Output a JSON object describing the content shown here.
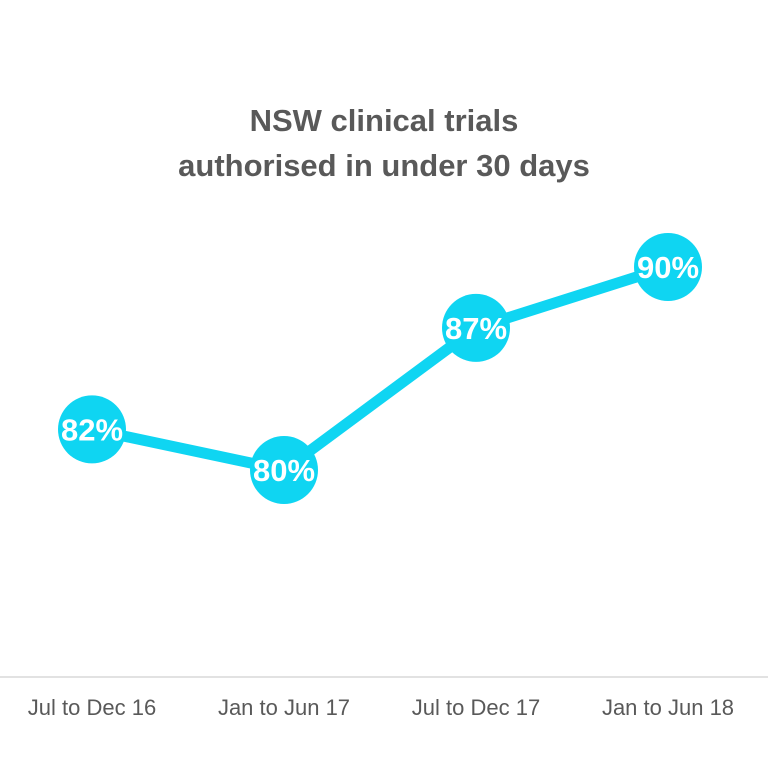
{
  "chart_data": {
    "type": "line",
    "title_lines": [
      "NSW clinical trials",
      "authorised in under 30 days"
    ],
    "categories": [
      "Jul to Dec 16",
      "Jan to Jun 17",
      "Jul to Dec 17",
      "Jan to Jun 18"
    ],
    "series": [
      {
        "values": [
          82,
          80,
          87,
          90
        ],
        "data_labels": [
          "82%",
          "80%",
          "87%",
          "90%"
        ],
        "color": "#0fd5f2"
      }
    ],
    "xlabel": "",
    "ylabel": "",
    "ylim": [
      70,
      95
    ],
    "grid": false,
    "axis_color": "#d9d9d9",
    "text_color": "#595959"
  }
}
